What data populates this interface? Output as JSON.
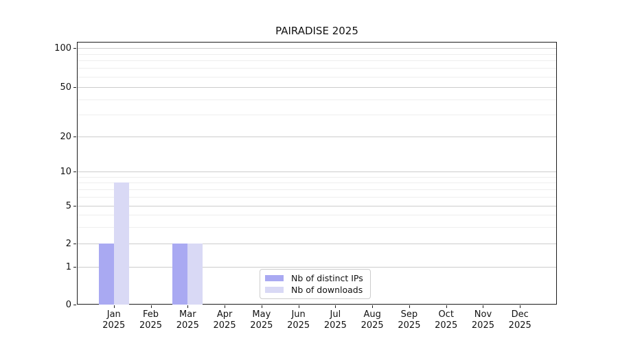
{
  "title": "PAIRADISE 2025",
  "chart_data": {
    "type": "bar",
    "title": "PAIRADISE 2025",
    "categories": [
      "Jan",
      "Feb",
      "Mar",
      "Apr",
      "May",
      "Jun",
      "Jul",
      "Aug",
      "Sep",
      "Oct",
      "Nov",
      "Dec"
    ],
    "category_year": "2025",
    "series": [
      {
        "name": "Nb of distinct IPs",
        "color": "#a9a9f2",
        "values": [
          2,
          0,
          2,
          0,
          0,
          0,
          0,
          0,
          0,
          0,
          0,
          0
        ]
      },
      {
        "name": "Nb of downloads",
        "color": "#d9d9f5",
        "values": [
          8,
          0,
          2,
          0,
          0,
          0,
          0,
          0,
          0,
          0,
          0,
          0
        ]
      }
    ],
    "y_axis": {
      "scale": "log-like (0 shown at baseline)",
      "ticks": [
        0,
        1,
        2,
        5,
        10,
        20,
        50,
        100
      ],
      "minor_ticks": [
        3,
        4,
        6,
        7,
        8,
        9,
        30,
        40,
        60,
        70,
        80,
        90
      ],
      "range_top": 110
    },
    "x_axis": {
      "label_format": "month over year, two lines"
    },
    "grid": true,
    "legend_position": "inside bottom-center"
  }
}
